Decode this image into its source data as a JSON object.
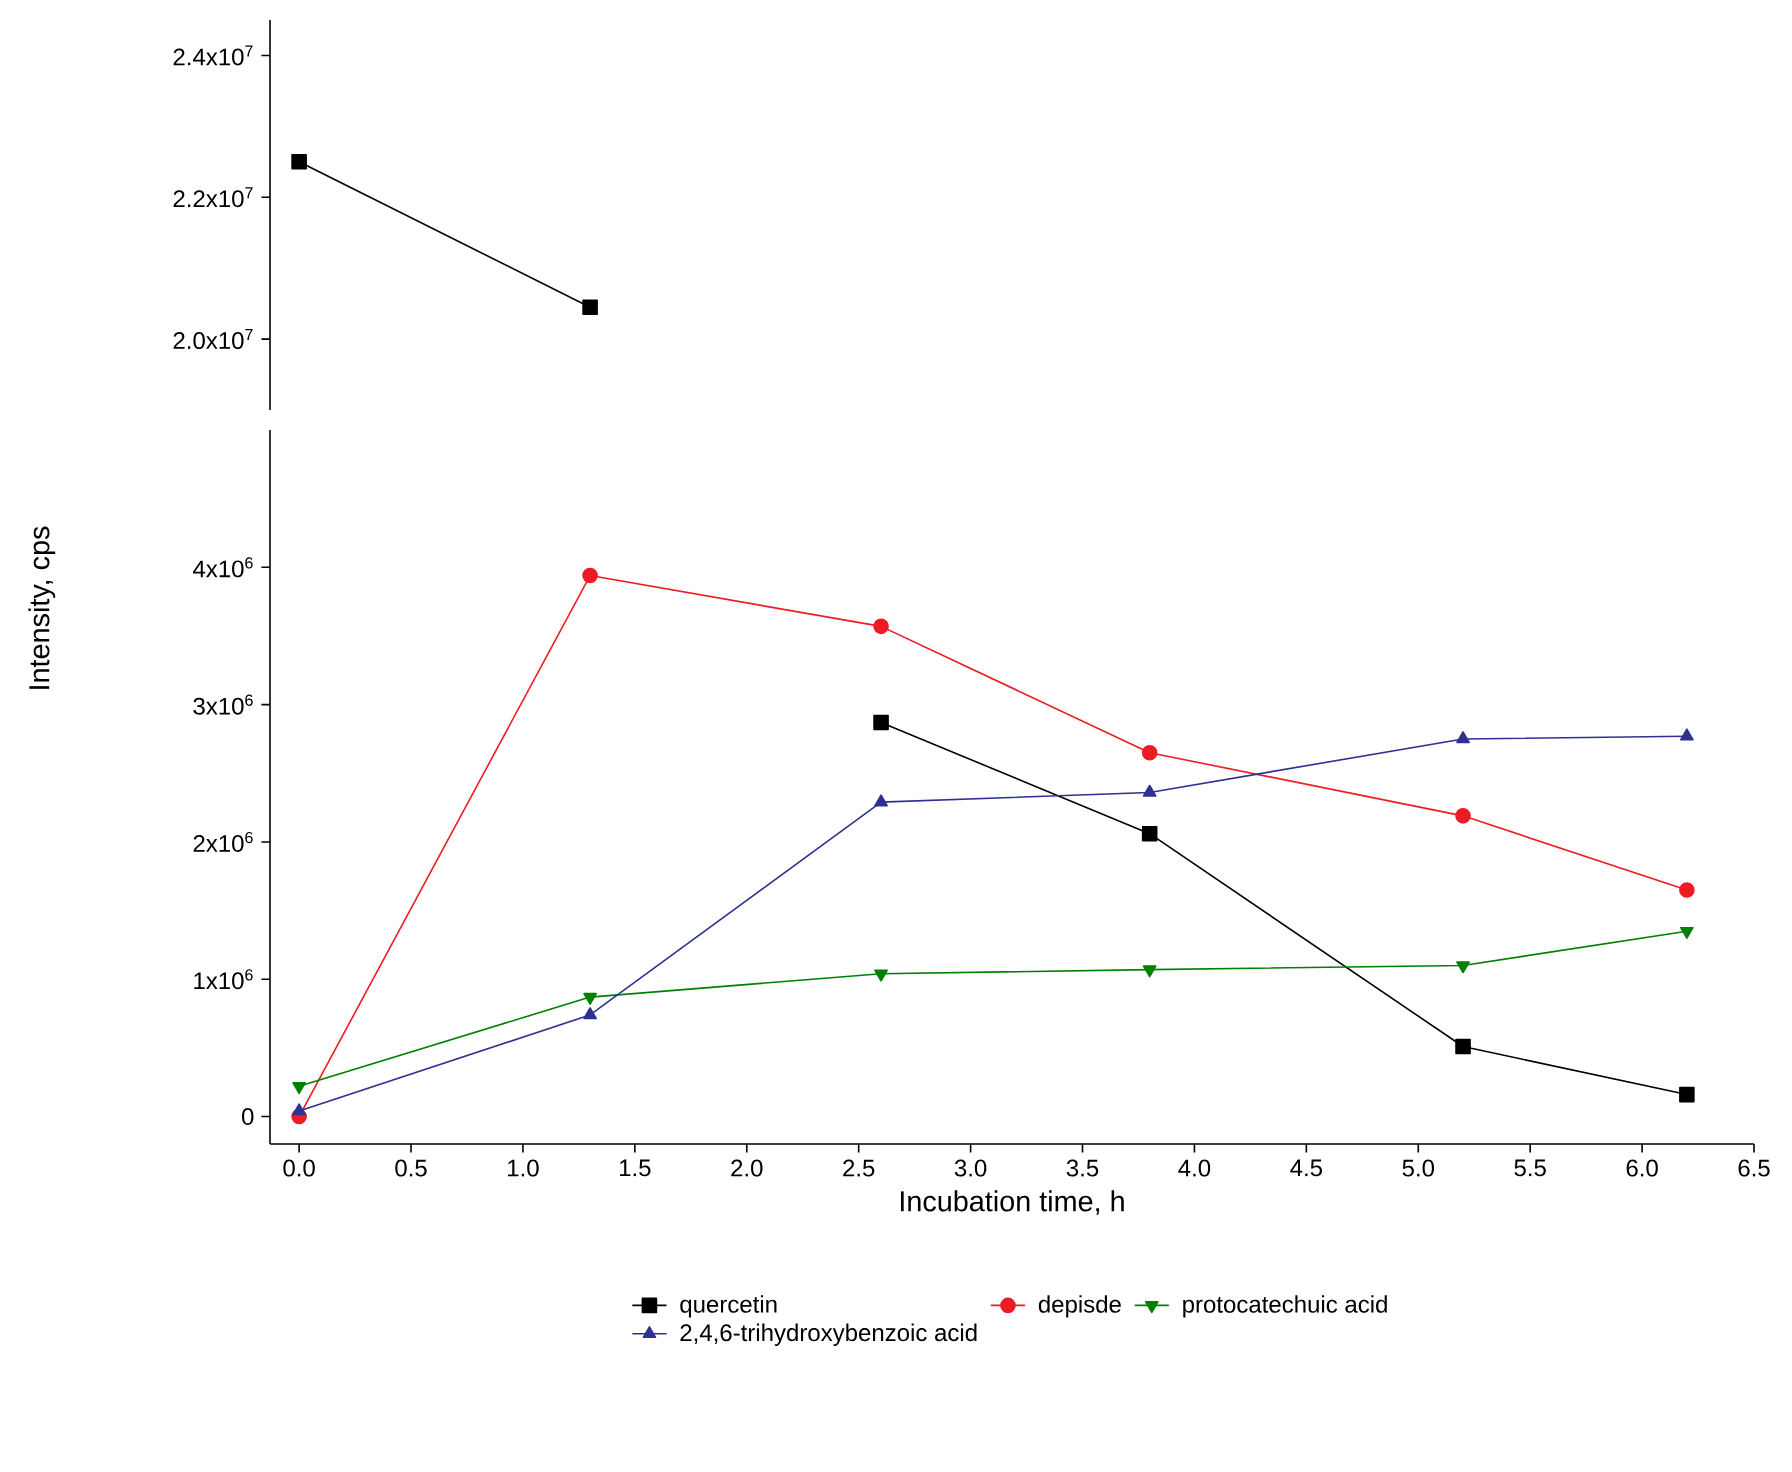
{
  "chart_data": [
    {
      "type": "line",
      "x": [
        0,
        1.3
      ],
      "xlim": [
        -0.13,
        6.5
      ],
      "ylim": [
        19000000,
        24500000
      ],
      "yticks": [
        {
          "value": 20000000,
          "label": "2.0x10$^{7}$"
        },
        {
          "value": 22000000,
          "label": "2.2x10$^{7}$"
        },
        {
          "value": 24000000,
          "label": "2.4x10$^{7}$"
        }
      ],
      "tick_labels": "y",
      "grid": false,
      "legend": false,
      "series": [
        {
          "color": "#000000",
          "marker": "square",
          "values": [
            22500000,
            20450000
          ]
        }
      ]
    },
    {
      "type": "line",
      "x": [
        0,
        1.3,
        2.6,
        3.8,
        5.2,
        6.2
      ],
      "xlim": [
        -0.13,
        6.5
      ],
      "ylim": [
        -200000,
        5000000
      ],
      "xticks": [
        {
          "value": 0,
          "label": "0.0"
        },
        {
          "value": 0.5,
          "label": "0.5"
        },
        {
          "value": 1,
          "label": "1.0"
        },
        {
          "value": 1.5,
          "label": "1.5"
        },
        {
          "value": 2,
          "label": "2.0"
        },
        {
          "value": 2.5,
          "label": "2.5"
        },
        {
          "value": 3,
          "label": "3.0"
        },
        {
          "value": 3.5,
          "label": "3.5"
        },
        {
          "value": 4,
          "label": "4.0"
        },
        {
          "value": 4.5,
          "label": "4.5"
        },
        {
          "value": 5,
          "label": "5.0"
        },
        {
          "value": 5.5,
          "label": "5.5"
        },
        {
          "value": 6,
          "label": "6.0"
        },
        {
          "value": 6.5,
          "label": "6.5"
        }
      ],
      "yticks": [
        {
          "value": 0,
          "label": "0"
        },
        {
          "value": 1000000,
          "label": "1x10$^{6}$"
        },
        {
          "value": 2000000,
          "label": "2x10$^{6}$"
        },
        {
          "value": 3000000,
          "label": "3x10$^{6}$"
        },
        {
          "value": 4000000,
          "label": "4x10$^{6}$"
        }
      ],
      "xlabel": "Incubation time, h",
      "ylabel": "Intensity, cps",
      "grid": false,
      "legend": "bottom",
      "series": [
        {
          "name": "quercetin",
          "color": "#000000",
          "marker": "square",
          "values": [
            null,
            null,
            2870000,
            2060000,
            510000,
            160000
          ]
        },
        {
          "name": "depisde",
          "color": "#ed1c24",
          "marker": "circle",
          "values": [
            0,
            3940000,
            3570000,
            2650000,
            2190000,
            1650000
          ]
        },
        {
          "name": "protocatechuic acid",
          "color": "#008000",
          "marker": "triangle-down",
          "values": [
            220000,
            870000,
            1040000,
            1070000,
            1100000,
            1350000
          ]
        },
        {
          "name": "2,4,6-trihydroxybenzoic acid",
          "color": "#2e3192",
          "marker": "triangle",
          "values": [
            40000,
            740000,
            2290000,
            2360000,
            2750000,
            2770000
          ]
        }
      ]
    }
  ]
}
